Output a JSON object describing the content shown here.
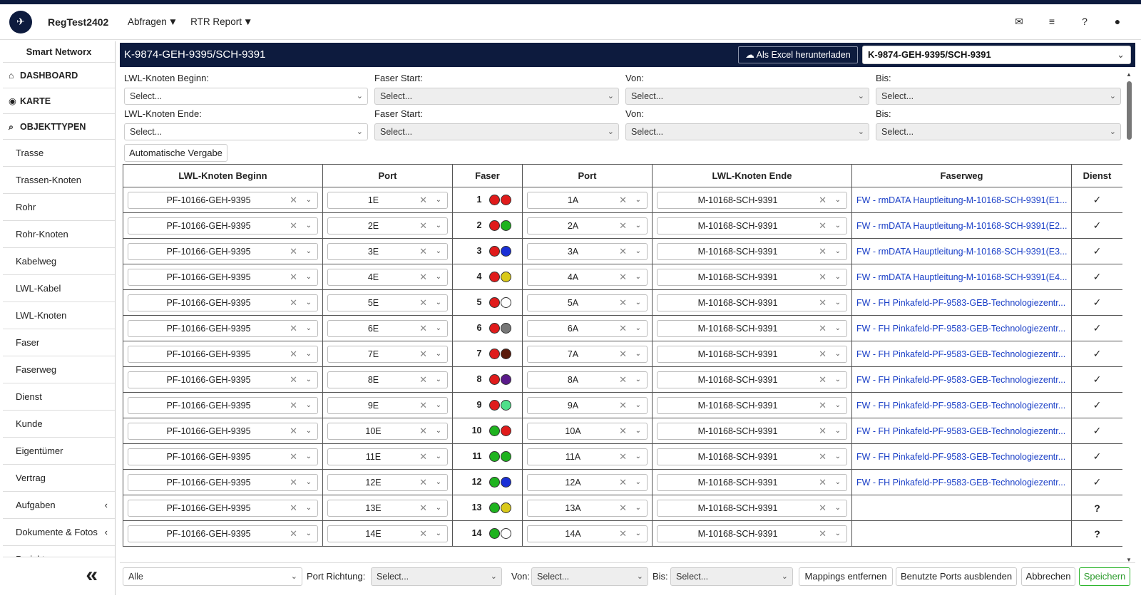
{
  "app": {
    "brand": "RegTest2402",
    "menu": [
      {
        "label": "Abfragen"
      },
      {
        "label": "RTR Report"
      }
    ]
  },
  "sidebar": {
    "title": "Smart Networx",
    "main_items": [
      {
        "icon": "home-icon",
        "glyph": "⌂",
        "label": "DASHBOARD"
      },
      {
        "icon": "globe-icon",
        "glyph": "◉",
        "label": "KARTE"
      },
      {
        "icon": "search-icon",
        "glyph": "⌕",
        "label": "OBJEKTTYPEN"
      }
    ],
    "sub_items": [
      "Trasse",
      "Trassen-Knoten",
      "Rohr",
      "Rohr-Knoten",
      "Kabelweg",
      "LWL-Kabel",
      "LWL-Knoten",
      "Faser",
      "Faserweg",
      "Dienst",
      "Kunde",
      "Eigentümer",
      "Vertrag",
      "Aufgaben",
      "Dokumente & Fotos",
      "Projekt"
    ],
    "collapse_glyph": "«"
  },
  "header": {
    "title": "K-9874-GEH-9395/SCH-9391",
    "excel_label": "Als Excel herunterladen",
    "selected_cable": "K-9874-GEH-9395/SCH-9391"
  },
  "filters": {
    "row1": {
      "knoten_label": "LWL-Knoten Beginn:",
      "faser_label": "Faser Start:",
      "von_label": "Von:",
      "bis_label": "Bis:"
    },
    "row2": {
      "knoten_label": "LWL-Knoten Ende:",
      "faser_label": "Faser Start:",
      "von_label": "Von:",
      "bis_label": "Bis:"
    },
    "placeholder": "Select...",
    "auto_button": "Automatische Vergabe"
  },
  "table": {
    "headers": [
      "LWL-Knoten Beginn",
      "Port",
      "Faser",
      "Port",
      "LWL-Knoten Ende",
      "Faserweg",
      "Dienst"
    ],
    "rows": [
      {
        "begin": "PF-10166-GEH-9395",
        "port_a": "1E",
        "faser": "1",
        "colors": [
          "#e01b1b",
          "#e01b1b"
        ],
        "port_b": "1A",
        "end": "M-10168-SCH-9391",
        "faserweg": "FW - rmDATA Hauptleitung-M-10168-SCH-9391(E1...",
        "dienst": "✓"
      },
      {
        "begin": "PF-10166-GEH-9395",
        "port_a": "2E",
        "faser": "2",
        "colors": [
          "#e01b1b",
          "#1fb31f"
        ],
        "port_b": "2A",
        "end": "M-10168-SCH-9391",
        "faserweg": "FW - rmDATA Hauptleitung-M-10168-SCH-9391(E2...",
        "dienst": "✓"
      },
      {
        "begin": "PF-10166-GEH-9395",
        "port_a": "3E",
        "faser": "3",
        "colors": [
          "#e01b1b",
          "#1a2fd6"
        ],
        "port_b": "3A",
        "end": "M-10168-SCH-9391",
        "faserweg": "FW - rmDATA Hauptleitung-M-10168-SCH-9391(E3...",
        "dienst": "✓"
      },
      {
        "begin": "PF-10166-GEH-9395",
        "port_a": "4E",
        "faser": "4",
        "colors": [
          "#e01b1b",
          "#d9c91a"
        ],
        "port_b": "4A",
        "end": "M-10168-SCH-9391",
        "faserweg": "FW - rmDATA Hauptleitung-M-10168-SCH-9391(E4...",
        "dienst": "✓"
      },
      {
        "begin": "PF-10166-GEH-9395",
        "port_a": "5E",
        "faser": "5",
        "colors": [
          "#e01b1b",
          "#ffffff"
        ],
        "port_b": "5A",
        "end": "M-10168-SCH-9391",
        "faserweg": "FW - FH Pinkafeld-PF-9583-GEB-Technologiezentr...",
        "dienst": "✓"
      },
      {
        "begin": "PF-10166-GEH-9395",
        "port_a": "6E",
        "faser": "6",
        "colors": [
          "#e01b1b",
          "#777777"
        ],
        "port_b": "6A",
        "end": "M-10168-SCH-9391",
        "faserweg": "FW - FH Pinkafeld-PF-9583-GEB-Technologiezentr...",
        "dienst": "✓"
      },
      {
        "begin": "PF-10166-GEH-9395",
        "port_a": "7E",
        "faser": "7",
        "colors": [
          "#e01b1b",
          "#5a1a0a"
        ],
        "port_b": "7A",
        "end": "M-10168-SCH-9391",
        "faserweg": "FW - FH Pinkafeld-PF-9583-GEB-Technologiezentr...",
        "dienst": "✓"
      },
      {
        "begin": "PF-10166-GEH-9395",
        "port_a": "8E",
        "faser": "8",
        "colors": [
          "#e01b1b",
          "#5a1a8a"
        ],
        "port_b": "8A",
        "end": "M-10168-SCH-9391",
        "faserweg": "FW - FH Pinkafeld-PF-9583-GEB-Technologiezentr...",
        "dienst": "✓"
      },
      {
        "begin": "PF-10166-GEH-9395",
        "port_a": "9E",
        "faser": "9",
        "colors": [
          "#e01b1b",
          "#4fe08a"
        ],
        "port_b": "9A",
        "end": "M-10168-SCH-9391",
        "faserweg": "FW - FH Pinkafeld-PF-9583-GEB-Technologiezentr...",
        "dienst": "✓"
      },
      {
        "begin": "PF-10166-GEH-9395",
        "port_a": "10E",
        "faser": "10",
        "colors": [
          "#1fb31f",
          "#e01b1b"
        ],
        "port_b": "10A",
        "end": "M-10168-SCH-9391",
        "faserweg": "FW - FH Pinkafeld-PF-9583-GEB-Technologiezentr...",
        "dienst": "✓"
      },
      {
        "begin": "PF-10166-GEH-9395",
        "port_a": "11E",
        "faser": "11",
        "colors": [
          "#1fb31f",
          "#1fb31f"
        ],
        "port_b": "11A",
        "end": "M-10168-SCH-9391",
        "faserweg": "FW - FH Pinkafeld-PF-9583-GEB-Technologiezentr...",
        "dienst": "✓"
      },
      {
        "begin": "PF-10166-GEH-9395",
        "port_a": "12E",
        "faser": "12",
        "colors": [
          "#1fb31f",
          "#1a2fd6"
        ],
        "port_b": "12A",
        "end": "M-10168-SCH-9391",
        "faserweg": "FW - FH Pinkafeld-PF-9583-GEB-Technologiezentr...",
        "dienst": "✓"
      },
      {
        "begin": "PF-10166-GEH-9395",
        "port_a": "13E",
        "faser": "13",
        "colors": [
          "#1fb31f",
          "#d9c91a"
        ],
        "port_b": "13A",
        "end": "M-10168-SCH-9391",
        "faserweg": "",
        "dienst": "?"
      },
      {
        "begin": "PF-10166-GEH-9395",
        "port_a": "14E",
        "faser": "14",
        "colors": [
          "#1fb31f",
          "#ffffff"
        ],
        "port_b": "14A",
        "end": "M-10168-SCH-9391",
        "faserweg": "",
        "dienst": "?"
      }
    ]
  },
  "footer": {
    "filter_value": "Alle",
    "richtung_label": "Port Richtung:",
    "von_label": "Von:",
    "bis_label": "Bis:",
    "placeholder": "Select...",
    "mappings_button": "Mappings entfernen",
    "hide_ports_button": "Benutzte Ports ausblenden",
    "cancel_button": "Abbrechen",
    "save_button": "Speichern"
  }
}
